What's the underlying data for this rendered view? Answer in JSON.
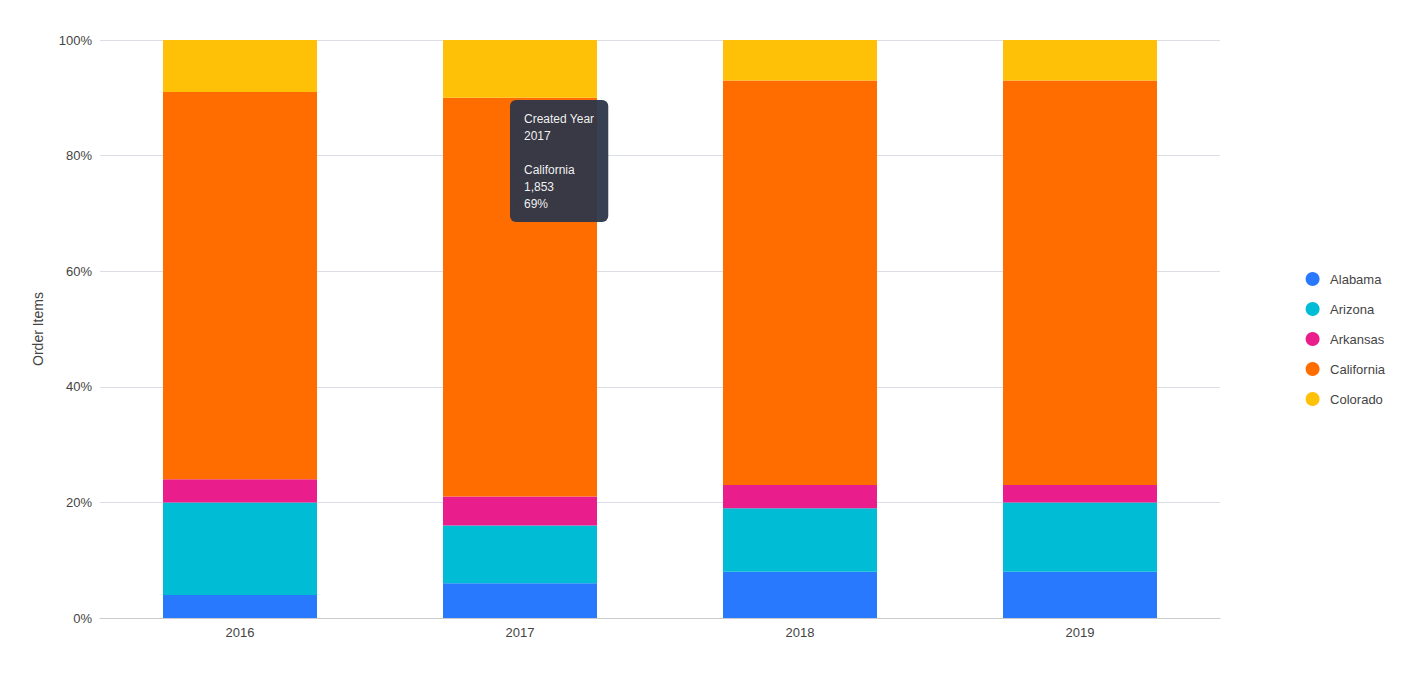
{
  "chart_data": {
    "type": "bar",
    "stacked": true,
    "categories": [
      "2016",
      "2017",
      "2018",
      "2019"
    ],
    "series": [
      {
        "name": "Alabama",
        "color": "#2979FF",
        "values": [
          4,
          6,
          8,
          8
        ]
      },
      {
        "name": "Arizona",
        "color": "#00BCD4",
        "values": [
          16,
          10,
          11,
          12
        ]
      },
      {
        "name": "Arkansas",
        "color": "#E91E8C",
        "values": [
          4,
          5,
          4,
          3
        ]
      },
      {
        "name": "California",
        "color": "#FF6D00",
        "values": [
          67,
          69,
          70,
          70
        ]
      },
      {
        "name": "Colorado",
        "color": "#FFC107",
        "values": [
          9,
          10,
          7,
          7
        ]
      }
    ],
    "y_label": "Order Items",
    "ylim": [
      0,
      100
    ],
    "yticks": [
      {
        "value": 0,
        "label": "0%"
      },
      {
        "value": 20,
        "label": "20%"
      },
      {
        "value": 40,
        "label": "40%"
      },
      {
        "value": 60,
        "label": "60%"
      },
      {
        "value": 80,
        "label": "80%"
      },
      {
        "value": 100,
        "label": "100%"
      }
    ],
    "grid": true,
    "legend": "right",
    "annotation": {
      "text": "Created Year\n2017\n\nCalifornia\n1,853\n69%",
      "x": "2017",
      "color": "#2d3748"
    }
  }
}
